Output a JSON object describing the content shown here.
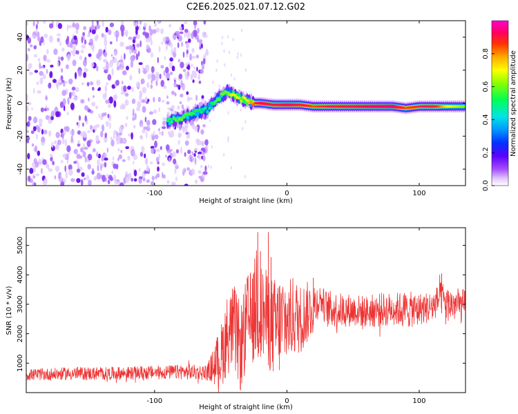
{
  "title": "C2E6.2025.021.07.12.G02",
  "chart_data": [
    {
      "type": "heatmap",
      "xlabel": "Height of straight line (km)",
      "ylabel": "Frequency (Hz)",
      "xlim": [
        -197,
        135
      ],
      "ylim": [
        -50,
        50
      ],
      "xticks": [
        -100,
        0,
        100
      ],
      "yticks": [
        -40,
        -20,
        0,
        20,
        40
      ],
      "noise_region_x": [
        -197,
        -60
      ],
      "ridge": {
        "x": [
          -90,
          -80,
          -70,
          -60,
          -55,
          -50,
          -45,
          -40,
          -35,
          -30,
          -25,
          -20,
          -10,
          0,
          10,
          20,
          40,
          60,
          80,
          90,
          100,
          110,
          120,
          135
        ],
        "y": [
          -11,
          -9,
          -6,
          -4,
          1,
          4,
          7,
          5,
          3,
          1,
          0,
          0,
          -1,
          -1,
          -1,
          -2,
          -2,
          -2,
          -2,
          -3,
          -2,
          -2,
          -2,
          -2
        ],
        "amplitude": [
          0.45,
          0.5,
          0.45,
          0.4,
          0.45,
          0.5,
          0.5,
          0.6,
          0.55,
          0.6,
          0.7,
          0.85,
          0.8,
          0.85,
          0.8,
          0.7,
          0.8,
          0.85,
          0.9,
          0.7,
          0.75,
          0.8,
          0.6,
          0.5
        ]
      },
      "colorbar": {
        "label": "Normalized spectral amplitude",
        "ticks": [
          0.0,
          0.2,
          0.4,
          0.6,
          0.8
        ],
        "range": [
          0,
          1
        ]
      }
    },
    {
      "type": "line",
      "xlabel": "Height of straight line (km)",
      "ylabel": "SNR (10 * v/v)",
      "xlim": [
        -197,
        135
      ],
      "ylim": [
        0,
        5600
      ],
      "xticks": [
        -100,
        0,
        100
      ],
      "yticks": [
        1000,
        2000,
        3000,
        4000,
        5000
      ],
      "color": "#ee3333",
      "series": [
        {
          "x": [
            -197,
            -180,
            -160,
            -140,
            -120,
            -100,
            -80,
            -60,
            -50,
            -45,
            -40,
            -35,
            -30,
            -25,
            -22,
            -20,
            -15,
            -10,
            -5,
            0,
            5,
            10,
            20,
            25,
            30,
            40,
            50,
            60,
            70,
            80,
            90,
            100,
            110,
            117,
            120,
            125,
            135
          ],
          "y": [
            600,
            620,
            650,
            640,
            660,
            680,
            700,
            680,
            1200,
            2000,
            2200,
            1500,
            2400,
            2600,
            3500,
            2800,
            2500,
            2200,
            2300,
            2400,
            2600,
            2500,
            2900,
            3200,
            2850,
            2800,
            2800,
            2750,
            2800,
            2850,
            2800,
            2850,
            2900,
            3300,
            3000,
            3000,
            2900
          ],
          "envelope": [
            400,
            420,
            450,
            450,
            450,
            480,
            500,
            550,
            2200,
            2800,
            3000,
            3000,
            3300,
            3200,
            5400,
            3200,
            3300,
            3400,
            3600,
            2700,
            2800,
            2400,
            1900,
            900,
            1300,
            1200,
            1100,
            1100,
            1200,
            1100,
            1300,
            1100,
            1100,
            1000,
            1200,
            1200,
            1200
          ]
        }
      ]
    }
  ]
}
